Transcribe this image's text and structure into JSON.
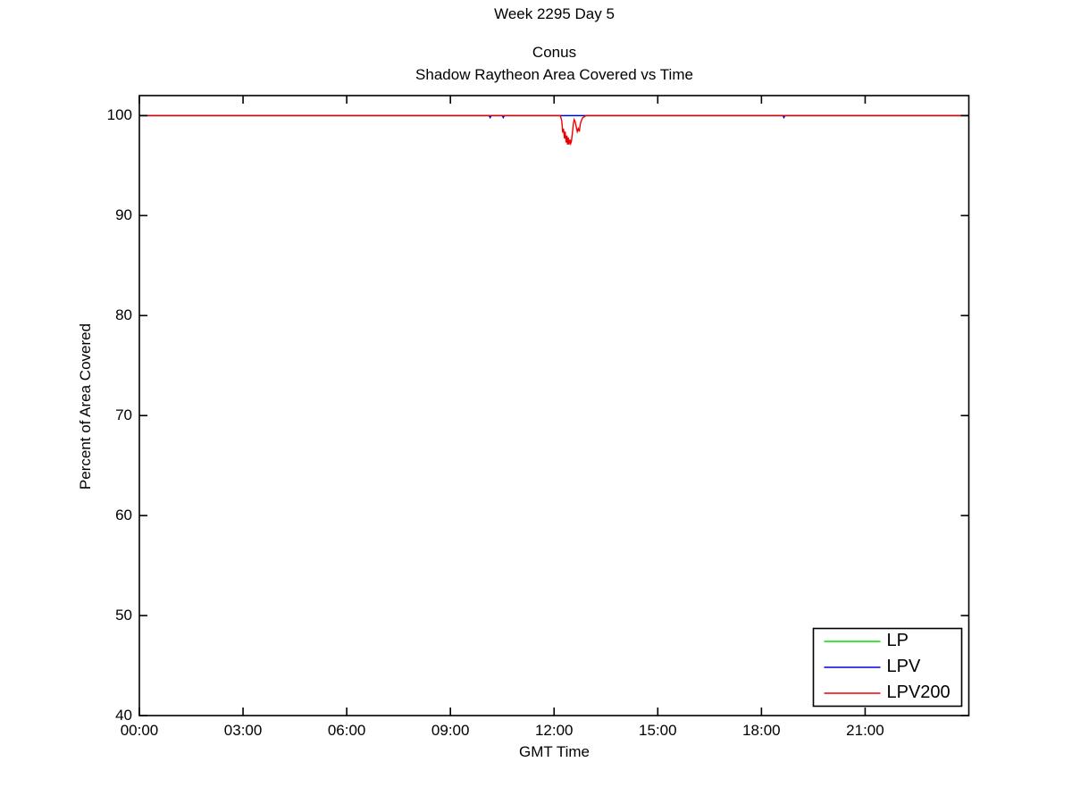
{
  "page": {
    "background": "#ffffff",
    "text_color": "#000000"
  },
  "chart_data": {
    "type": "line",
    "title_top": "Week 2295 Day 5",
    "title": "Conus",
    "subtitle": "Shadow Raytheon Area Covered vs Time",
    "xlabel": "GMT Time",
    "ylabel": "Percent of Area Covered",
    "x_unit": "hours",
    "xlim": [
      0,
      24
    ],
    "ylim": [
      40,
      102
    ],
    "grid": false,
    "legend_position": "lower-right",
    "x_ticks": [
      {
        "hour": 0,
        "label": "00:00"
      },
      {
        "hour": 3,
        "label": "03:00"
      },
      {
        "hour": 6,
        "label": "06:00"
      },
      {
        "hour": 9,
        "label": "09:00"
      },
      {
        "hour": 12,
        "label": "12:00"
      },
      {
        "hour": 15,
        "label": "15:00"
      },
      {
        "hour": 18,
        "label": "18:00"
      },
      {
        "hour": 21,
        "label": "21:00"
      }
    ],
    "y_ticks": [
      {
        "value": 40,
        "label": "40"
      },
      {
        "value": 50,
        "label": "50"
      },
      {
        "value": 60,
        "label": "60"
      },
      {
        "value": 70,
        "label": "70"
      },
      {
        "value": 80,
        "label": "80"
      },
      {
        "value": 90,
        "label": "90"
      },
      {
        "value": 100,
        "label": "100"
      }
    ],
    "series": [
      {
        "name": "LP",
        "color": "#00dd00",
        "points": [
          [
            0,
            100
          ],
          [
            24,
            100
          ]
        ]
      },
      {
        "name": "LPV",
        "color": "#0000dd",
        "points": [
          [
            0,
            100
          ],
          [
            10.12,
            100
          ],
          [
            10.15,
            99.8
          ],
          [
            10.18,
            100
          ],
          [
            10.5,
            100
          ],
          [
            10.53,
            99.8
          ],
          [
            10.56,
            100
          ],
          [
            18.62,
            100
          ],
          [
            18.65,
            99.8
          ],
          [
            18.68,
            100
          ],
          [
            24,
            100
          ]
        ]
      },
      {
        "name": "LPV200",
        "color": "#ee0000",
        "points": [
          [
            0,
            100
          ],
          [
            12.18,
            100
          ],
          [
            12.22,
            99.5
          ],
          [
            12.25,
            98.3
          ],
          [
            12.27,
            98.7
          ],
          [
            12.3,
            97.7
          ],
          [
            12.32,
            98.4
          ],
          [
            12.35,
            97.3
          ],
          [
            12.37,
            98.0
          ],
          [
            12.39,
            97.1
          ],
          [
            12.41,
            97.8
          ],
          [
            12.43,
            97.1
          ],
          [
            12.46,
            97.6
          ],
          [
            12.48,
            97.2
          ],
          [
            12.5,
            97.4
          ],
          [
            12.53,
            98.3
          ],
          [
            12.56,
            99.2
          ],
          [
            12.58,
            99.6
          ],
          [
            12.61,
            99.4
          ],
          [
            12.64,
            98.9
          ],
          [
            12.67,
            98.4
          ],
          [
            12.7,
            98.7
          ],
          [
            12.73,
            98.4
          ],
          [
            12.76,
            99.2
          ],
          [
            12.79,
            99.5
          ],
          [
            12.83,
            99.8
          ],
          [
            12.88,
            99.9
          ],
          [
            12.92,
            100
          ],
          [
            24,
            100
          ]
        ]
      }
    ]
  }
}
